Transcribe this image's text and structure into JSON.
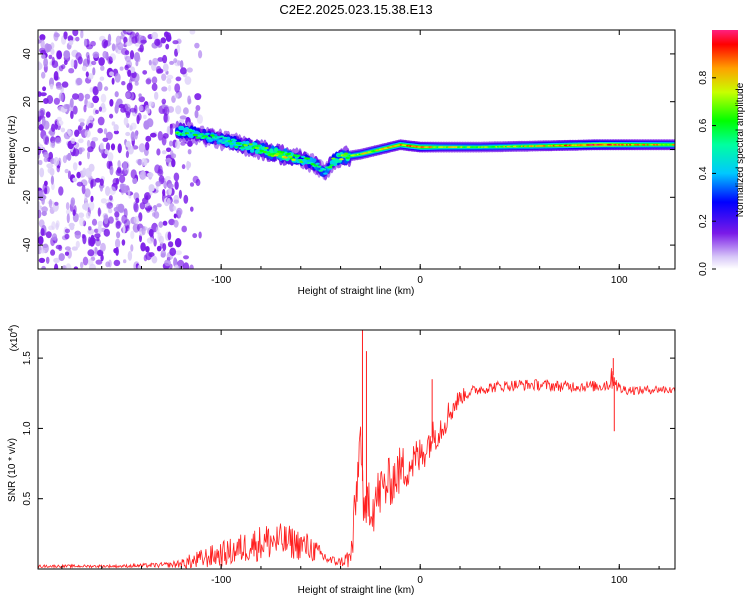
{
  "figure_title": "C2E2.2025.023.15.38.E13",
  "colors": {
    "signal": "#ff2020",
    "speckle": "#7a1ae8"
  },
  "chart_data": [
    {
      "type": "heatmap",
      "xlabel": "Height of straight line (km)",
      "ylabel": "Frequency (Hz)",
      "xlim": [
        -192,
        128
      ],
      "ylim": [
        -50,
        50
      ],
      "x_ticks": [
        -100,
        0,
        100
      ],
      "x_tick_labels": [
        "-100",
        "0",
        "100"
      ],
      "y_ticks": [
        -40,
        -20,
        0,
        20,
        40
      ],
      "y_tick_labels": [
        "-40",
        "-20",
        "0",
        "20",
        "40"
      ],
      "noise_region_x": [
        -192,
        -108
      ],
      "ridge": {
        "x": [
          -122,
          -110,
          -100,
          -90,
          -80,
          -70,
          -60,
          -53,
          -48,
          -45,
          -42,
          -38,
          -30,
          -20,
          -10,
          0,
          10,
          30,
          60,
          90,
          110,
          128
        ],
        "y": [
          8,
          6,
          4,
          2,
          0,
          -2,
          -4,
          -6,
          -10,
          -6,
          -4,
          -3,
          -2,
          0,
          2,
          1,
          1,
          1,
          1.5,
          2,
          2,
          2
        ],
        "amp": [
          0.6,
          0.5,
          0.5,
          0.55,
          0.6,
          0.75,
          0.55,
          0.5,
          0.4,
          0.55,
          0.6,
          0.65,
          0.7,
          0.75,
          0.8,
          0.85,
          0.7,
          0.65,
          0.75,
          0.95,
          0.8,
          0.75
        ]
      },
      "colorbar": {
        "label": "Normalized spectral amplitude",
        "range": [
          0,
          1
        ],
        "ticks": [
          0.0,
          0.2,
          0.4,
          0.6,
          0.8
        ],
        "tick_labels": [
          "0.0",
          "0.2",
          "0.4",
          "0.6",
          "0.8"
        ]
      }
    },
    {
      "type": "line",
      "xlabel": "Height of straight line (km)",
      "ylabel": "SNR (10 * v/v)",
      "y_scale_label": "(x10",
      "y_scale_exp": "4",
      "y_scale_close": ")",
      "xlim": [
        -192,
        128
      ],
      "ylim": [
        0,
        1.7
      ],
      "x_ticks": [
        -100,
        0,
        100
      ],
      "x_tick_labels": [
        "-100",
        "0",
        "100"
      ],
      "y_ticks": [
        0.5,
        1.0,
        1.5
      ],
      "y_tick_labels": [
        "0.5",
        "1.0",
        "1.5"
      ],
      "series": [
        {
          "x": [
            -192,
            -150,
            -125,
            -115,
            -105,
            -95,
            -85,
            -75,
            -65,
            -55,
            -50,
            -45,
            -40,
            -35,
            -33,
            -30,
            -28,
            -26,
            -24,
            -22,
            -20,
            -15,
            -10,
            -5,
            0,
            5,
            10,
            15,
            20,
            25,
            30,
            40,
            50,
            60,
            70,
            80,
            90,
            95,
            97,
            100,
            110,
            120,
            128
          ],
          "y": [
            0.02,
            0.02,
            0.03,
            0.05,
            0.09,
            0.12,
            0.17,
            0.2,
            0.19,
            0.15,
            0.1,
            0.06,
            0.05,
            0.08,
            0.3,
            1.0,
            0.25,
            0.55,
            0.45,
            0.5,
            0.55,
            0.62,
            0.7,
            0.75,
            0.8,
            0.92,
            1.0,
            1.12,
            1.22,
            1.26,
            1.28,
            1.3,
            1.31,
            1.31,
            1.3,
            1.3,
            1.3,
            1.32,
            1.38,
            1.28,
            1.27,
            1.28,
            1.27
          ],
          "noise": [
            0.01,
            0.01,
            0.02,
            0.06,
            0.08,
            0.1,
            0.12,
            0.14,
            0.12,
            0.1,
            0.06,
            0.04,
            0.03,
            0.1,
            0.25,
            0.1,
            0.2,
            0.22,
            0.22,
            0.2,
            0.2,
            0.18,
            0.18,
            0.16,
            0.15,
            0.12,
            0.12,
            0.1,
            0.06,
            0.04,
            0.04,
            0.04,
            0.04,
            0.04,
            0.04,
            0.04,
            0.04,
            0.06,
            0.1,
            0.04,
            0.03,
            0.03,
            0.03
          ],
          "spikes": [
            {
              "x": -29,
              "y": 1.7
            },
            {
              "x": -27,
              "y": 1.55
            },
            {
              "x": 6,
              "y": 1.35
            },
            {
              "x": 97,
              "y": 1.5
            },
            {
              "x": 97.5,
              "y": 0.98
            }
          ]
        }
      ]
    }
  ]
}
